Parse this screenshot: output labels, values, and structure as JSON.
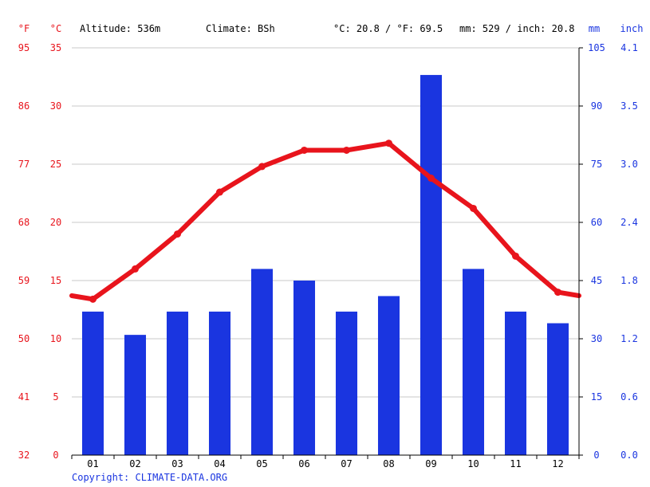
{
  "header": {
    "unit_f": "°F",
    "unit_c": "°C",
    "altitude": "Altitude: 536m",
    "climate": "Climate: BSh",
    "temp_avg": "°C: 20.8 / °F: 69.5",
    "precip_total": "mm: 529 / inch: 20.8",
    "unit_mm": "mm",
    "unit_inch": "inch"
  },
  "copyright": "Copyright: CLIMATE-DATA.ORG",
  "colors": {
    "temperature": "#e8141c",
    "precipitation": "#1a35e0",
    "grid": "#c8c8c8"
  },
  "chart_data": {
    "type": "bar+line",
    "categories": [
      "01",
      "02",
      "03",
      "04",
      "05",
      "06",
      "07",
      "08",
      "09",
      "10",
      "11",
      "12"
    ],
    "temp_c": [
      13.4,
      16.0,
      19.0,
      22.6,
      24.8,
      26.2,
      26.2,
      26.8,
      23.8,
      21.2,
      17.1,
      14.0
    ],
    "temp_line_edges": {
      "start": 13.7,
      "end": 13.7
    },
    "precip_mm": [
      37,
      31,
      37,
      37,
      48,
      45,
      37,
      41,
      98,
      48,
      37,
      34
    ],
    "axes": {
      "left_f": {
        "ticks": [
          "95",
          "86",
          "77",
          "68",
          "59",
          "50",
          "41",
          "32"
        ]
      },
      "left_c": {
        "ticks": [
          "35",
          "30",
          "25",
          "20",
          "15",
          "10",
          "5",
          "0"
        ],
        "range": [
          0,
          35
        ]
      },
      "right_mm": {
        "ticks": [
          "105",
          "90",
          "75",
          "60",
          "45",
          "30",
          "15",
          "0"
        ],
        "range": [
          0,
          105
        ]
      },
      "right_inch": {
        "ticks": [
          "4.1",
          "3.5",
          "3.0",
          "2.4",
          "1.8",
          "1.2",
          "0.6",
          "0.0"
        ]
      }
    },
    "grid": true
  }
}
